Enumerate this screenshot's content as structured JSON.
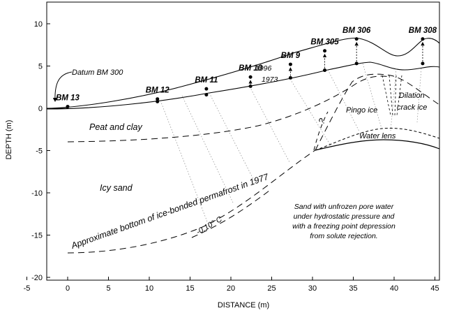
{
  "axes": {
    "xlabel": "DISTANCE (m)",
    "ylabel": "DEPTH (m)",
    "x_ticks": [
      "-5",
      "0",
      "5",
      "10",
      "15",
      "20",
      "25",
      "30",
      "35",
      "40",
      "45"
    ],
    "y_ticks": [
      "10",
      "5",
      "0",
      "-5",
      "-10",
      "-15",
      "-20"
    ],
    "xlim": [
      -5,
      45
    ],
    "ylim": [
      -20,
      12
    ]
  },
  "benchmarks": [
    {
      "label": "BM 13",
      "x": 0,
      "y1973": 0.1,
      "y1996": 0.2
    },
    {
      "label": "BM 12",
      "x": 11,
      "y1973": 0.8,
      "y1996": 1.1
    },
    {
      "label": "BM 11",
      "x": 17,
      "y1973": 1.6,
      "y1996": 2.3
    },
    {
      "label": "BM 10",
      "x": 22.4,
      "y1973": 2.6,
      "y1996": 3.7
    },
    {
      "label": "BM 9",
      "x": 27.3,
      "y1973": 3.6,
      "y1996": 5.2
    },
    {
      "label": "BM 305",
      "x": 31.5,
      "y1973": 4.5,
      "y1996": 6.8
    },
    {
      "label": "BM 306",
      "x": 35.4,
      "y1973": 5.3,
      "y1996": 8.2
    },
    {
      "label": "BM 308",
      "x": 43.5,
      "y1973": 5.3,
      "y1996": 8.2
    }
  ],
  "labels": {
    "datum": "Datum BM 300",
    "year_1996": "1996",
    "year_1973": "1973",
    "peat": "Peat and clay",
    "icy_sand": "Icy sand",
    "pingo_ice": "Pingo ice",
    "dilation_line1": "Dilation",
    "dilation_line2": "crack ice",
    "water_lens": "Water lens",
    "question": "?",
    "permafrost": "Approximate bottom of ice-bonded permafrost in 1977",
    "isotherm": "-0.10° C",
    "note_lines": [
      "Sand with unfrozen pore water",
      "under hydrostatic pressure and",
      "with a freezing point depression",
      "from solute rejection."
    ]
  }
}
